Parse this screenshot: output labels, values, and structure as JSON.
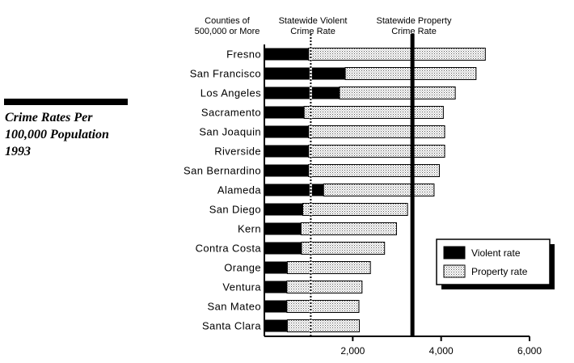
{
  "side_title": "Crime Rates Per\n100,000 Population\n1993",
  "headers": {
    "counties": "Counties of\n500,000 or More",
    "violent": "Statewide Violent\nCrime Rate",
    "property": "Statewide Property\nCrime Rate"
  },
  "chart_data": {
    "type": "bar",
    "orientation": "horizontal",
    "stacked": true,
    "categories": [
      "Fresno",
      "San Francisco",
      "Los Angeles",
      "Sacramento",
      "San Joaquin",
      "Riverside",
      "San Bernardino",
      "Alameda",
      "San Diego",
      "Kern",
      "Contra Costa",
      "Orange",
      "Ventura",
      "San Mateo",
      "Santa Clara"
    ],
    "series": [
      {
        "name": "Violent rate",
        "color": "#000000",
        "values": [
          1000,
          1830,
          1700,
          900,
          1000,
          1000,
          1000,
          1340,
          870,
          830,
          840,
          520,
          510,
          510,
          520
        ]
      },
      {
        "name": "Property rate",
        "color": "#d8d8d8",
        "pattern": "dotted",
        "values": [
          4000,
          2960,
          2620,
          3150,
          3080,
          3080,
          2960,
          2500,
          2370,
          2160,
          1880,
          1880,
          1700,
          1630,
          1630
        ]
      }
    ],
    "reference_lines": [
      {
        "label": "Statewide Violent\nCrime Rate",
        "value": 1050,
        "style": "dashed"
      },
      {
        "label": "Statewide Property\nCrime Rate",
        "value": 3350,
        "style": "solid"
      }
    ],
    "xlim": [
      0,
      6000
    ],
    "xticks": [
      2000,
      4000,
      6000
    ],
    "xtick_labels": [
      "2,000",
      "4,000",
      "6,000"
    ],
    "legend": {
      "position": "lower-right",
      "entries": [
        "Violent rate",
        "Property rate"
      ]
    }
  }
}
